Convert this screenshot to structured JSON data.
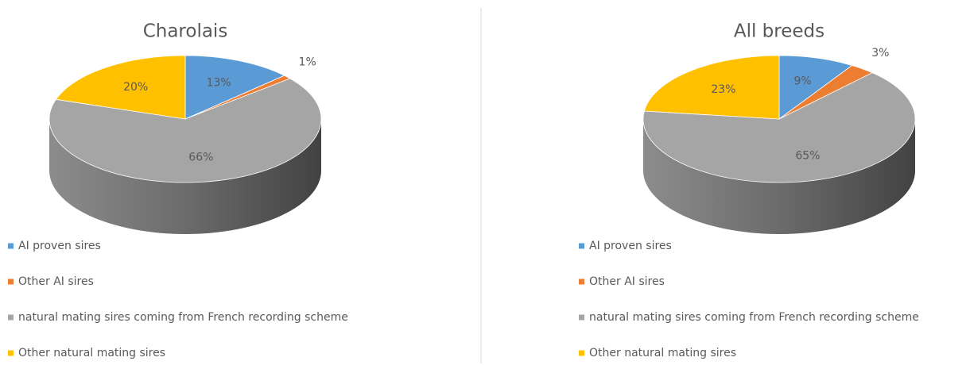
{
  "chart_data": [
    {
      "type": "pie",
      "title": "Charolais",
      "categories": [
        "AI proven sires",
        "Other AI sires",
        "natural mating sires coming from French recording scheme",
        "Other natural mating sires"
      ],
      "values": [
        13,
        1,
        66,
        20
      ],
      "value_labels": [
        "13%",
        "1%",
        "66%",
        "20%"
      ],
      "colors": [
        "#5b9bd5",
        "#ed7d31",
        "#a5a5a5",
        "#ffc000"
      ]
    },
    {
      "type": "pie",
      "title": "All breeds",
      "categories": [
        "AI proven sires",
        "Other AI sires",
        "natural mating sires coming from French recording scheme",
        "Other natural mating sires"
      ],
      "values": [
        9,
        3,
        65,
        23
      ],
      "value_labels": [
        "9%",
        "3%",
        "65%",
        "23%"
      ],
      "colors": [
        "#5b9bd5",
        "#ed7d31",
        "#a5a5a5",
        "#ffc000"
      ]
    }
  ]
}
